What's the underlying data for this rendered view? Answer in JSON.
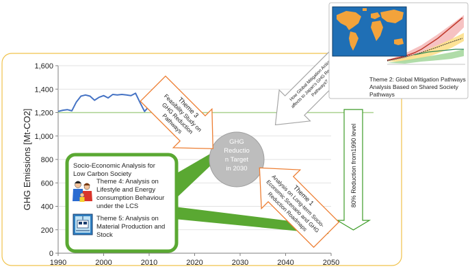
{
  "chart_data": {
    "type": "line",
    "ylabel": "GHG Emissions [Mt-CO2]",
    "xlabel": "",
    "xlim": [
      1990,
      2050
    ],
    "ylim": [
      0,
      1600
    ],
    "x_ticks": [
      "1990",
      "2000",
      "2010",
      "2020",
      "2030",
      "2040",
      "2050"
    ],
    "y_ticks": [
      "0",
      "200",
      "400",
      "600",
      "800",
      "1,000",
      "1,200",
      "1,400",
      "1,600"
    ],
    "grid": "horizontal",
    "series": [
      {
        "name": "",
        "color": "#4472c4",
        "x": [
          1990,
          1991,
          1992,
          1993,
          1994,
          1995,
          1996,
          1997,
          1998,
          1999,
          2000,
          2001,
          2002,
          2003,
          2004,
          2005,
          2006,
          2007,
          2008,
          2009,
          2010,
          2011,
          2012
        ],
        "y": [
          1210,
          1220,
          1225,
          1215,
          1290,
          1340,
          1350,
          1340,
          1305,
          1330,
          1345,
          1325,
          1355,
          1350,
          1355,
          1350,
          1345,
          1365,
          1285,
          1210,
          1255,
          1310,
          1345
        ]
      }
    ],
    "reference_line": {
      "value": 1200,
      "color": "#a9d18e"
    }
  },
  "target_circle": {
    "label": "GHG Reduction Target in 2030",
    "lines": [
      "GHG",
      "Reductio",
      "n Target",
      "in 2030"
    ]
  },
  "theme1": {
    "title": "Theme 1",
    "text": "Analysis on Long-term Socio-Economic Scenario and GHG Reduction Roadmaps",
    "lines": [
      "Analysis on Long-term Socio-",
      "Economic Scenario and GHG",
      "Reduction Roadmaps"
    ]
  },
  "theme2": {
    "text": "Theme 2: Global Mitigation Pathways Analysis Based on Shared Society Pathways",
    "lines": [
      "Theme 2: Global Mitigation Pathways",
      "Analysis Based on Shared Society",
      "Pathways"
    ]
  },
  "theme3": {
    "title": "Theme 3",
    "text": "Feasibility Study on GHG Reduction Pathways",
    "lines": [
      "Feasibility Study on",
      "GHG Reduction",
      "Pathways"
    ]
  },
  "global_arrow": {
    "text": "How Global Mitigation Actions affects to Japan's GHG Reduction Pathways?",
    "lines": [
      "How Global Mitigation Actions",
      "affects to Japan's GHG Reduction",
      "Pathways?"
    ]
  },
  "socio_box": {
    "title": "Socio-Economic Analysis for Low Carbon Society",
    "title_lines": [
      "Socio-Economic Analysis for",
      "Low Carbon Society"
    ],
    "theme4": {
      "text": "Theme 4: Analysis on Lifestyle and Energy consumption Behaviour under the LCS",
      "lines": [
        "Theme 4: Analysis on",
        "Lifestyle and Energy",
        "consumption Behaviour",
        "under the LCS"
      ],
      "icon": "family-icon"
    },
    "theme5": {
      "text": "Theme 5: Analysis on Material Production and Stock",
      "lines": [
        "Theme 5: Analysis on",
        "Material Production and",
        "Stock"
      ],
      "icon": "train-icon"
    }
  },
  "reduction_arrow": {
    "text": "80% Reduction from1990 level",
    "color": "#3c9b27"
  },
  "colors": {
    "frame": "#f0c24b",
    "orange": "#ed7d31",
    "green": "#5aa832",
    "ocean": "#1f6fb5",
    "land": "#f3a33b"
  }
}
